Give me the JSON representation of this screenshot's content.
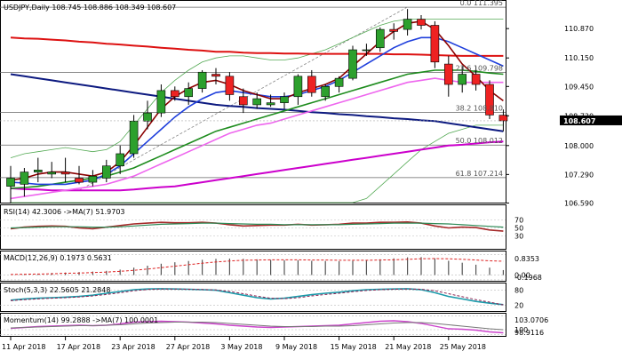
{
  "window": {
    "header": "USDJPY,Daily  108.745 108.886 108.349 108.607"
  },
  "colors": {
    "bull": "#2da02d",
    "bear": "#ee2222",
    "ma_darkred": "#8b0000",
    "ma_blue": "#1f3fdc",
    "ma_green": "#1e8c1e",
    "ma_red": "#dd1111",
    "ma_pink": "#ee66ee",
    "ma_magenta": "#cc00cc",
    "ma_navy": "#0d1a80",
    "bollinger": "#55aa55",
    "fib_line": "#666666",
    "price_label_bg": "#000000",
    "rsi_line": "#a52a2a",
    "rsi_ma": "#2e8b57",
    "macd_hist": "#555555",
    "macd_signal": "#dd2222",
    "stoch_main": "#1b9aaa",
    "stoch_signal": "#8b2252",
    "mom_main": "#cc44cc",
    "mom_ma": "#777777"
  },
  "chart_data": [
    {
      "type": "candlestick",
      "title": "USDJPY,Daily",
      "ohlc_text": "108.745 108.886 108.349 108.607",
      "current_price": "108.607",
      "ylim": [
        106.6,
        111.55
      ],
      "y_ticks": [
        "110.870",
        "110.150",
        "109.450",
        "108.730",
        "108.000",
        "107.290",
        "106.590"
      ],
      "x_ticks": [
        "11 Apr 2018",
        "17 Apr 2018",
        "23 Apr 2018",
        "27 Apr 2018",
        "3 May 2018",
        "9 May 2018",
        "15 May 2018",
        "21 May 2018",
        "25 May 2018"
      ],
      "x_tick_index": [
        0,
        4,
        8,
        12,
        16,
        20,
        24,
        28,
        32
      ],
      "fib_levels": [
        {
          "label": "0.0 111.395",
          "value": 111.395
        },
        {
          "label": "23.6 109.798",
          "value": 109.798
        },
        {
          "label": "38.2 108.810",
          "value": 108.81
        },
        {
          "label": "50.0 108.012",
          "value": 108.012
        },
        {
          "label": "61.8 107.214",
          "value": 107.214
        }
      ],
      "candles": [
        {
          "o": 107.0,
          "h": 107.5,
          "l": 106.6,
          "c": 107.2
        },
        {
          "o": 107.05,
          "h": 107.45,
          "l": 106.75,
          "c": 107.35
        },
        {
          "o": 107.35,
          "h": 107.7,
          "l": 107.1,
          "c": 107.4
        },
        {
          "o": 107.3,
          "h": 107.6,
          "l": 107.2,
          "c": 107.35
        },
        {
          "o": 107.35,
          "h": 107.7,
          "l": 107.1,
          "c": 107.3
        },
        {
          "o": 107.2,
          "h": 107.5,
          "l": 107.05,
          "c": 107.1
        },
        {
          "o": 107.1,
          "h": 107.4,
          "l": 107.0,
          "c": 107.25
        },
        {
          "o": 107.2,
          "h": 107.65,
          "l": 107.1,
          "c": 107.5
        },
        {
          "o": 107.5,
          "h": 108.0,
          "l": 107.3,
          "c": 107.8
        },
        {
          "o": 107.8,
          "h": 108.75,
          "l": 107.7,
          "c": 108.6
        },
        {
          "o": 108.6,
          "h": 109.1,
          "l": 108.4,
          "c": 108.8
        },
        {
          "o": 108.8,
          "h": 109.5,
          "l": 108.7,
          "c": 109.35
        },
        {
          "o": 109.35,
          "h": 109.45,
          "l": 109.1,
          "c": 109.2
        },
        {
          "o": 109.2,
          "h": 109.55,
          "l": 109.0,
          "c": 109.4
        },
        {
          "o": 109.4,
          "h": 109.85,
          "l": 109.3,
          "c": 109.8
        },
        {
          "o": 109.75,
          "h": 109.9,
          "l": 109.5,
          "c": 109.7
        },
        {
          "o": 109.7,
          "h": 109.8,
          "l": 109.1,
          "c": 109.25
        },
        {
          "o": 109.2,
          "h": 109.4,
          "l": 108.8,
          "c": 109.0
        },
        {
          "o": 109.0,
          "h": 109.3,
          "l": 108.9,
          "c": 109.15
        },
        {
          "o": 109.0,
          "h": 109.25,
          "l": 108.95,
          "c": 109.05
        },
        {
          "o": 109.05,
          "h": 109.3,
          "l": 108.9,
          "c": 109.2
        },
        {
          "o": 109.2,
          "h": 109.75,
          "l": 109.0,
          "c": 109.7
        },
        {
          "o": 109.7,
          "h": 109.85,
          "l": 109.2,
          "c": 109.3
        },
        {
          "o": 109.2,
          "h": 109.5,
          "l": 109.1,
          "c": 109.45
        },
        {
          "o": 109.45,
          "h": 109.7,
          "l": 109.3,
          "c": 109.65
        },
        {
          "o": 109.65,
          "h": 110.45,
          "l": 109.6,
          "c": 110.35
        },
        {
          "o": 110.35,
          "h": 110.5,
          "l": 110.2,
          "c": 110.35
        },
        {
          "o": 110.4,
          "h": 110.9,
          "l": 110.3,
          "c": 110.85
        },
        {
          "o": 110.85,
          "h": 111.0,
          "l": 110.6,
          "c": 110.8
        },
        {
          "o": 110.85,
          "h": 111.35,
          "l": 110.7,
          "c": 111.1
        },
        {
          "o": 111.1,
          "h": 111.2,
          "l": 110.85,
          "c": 110.95
        },
        {
          "o": 110.95,
          "h": 111.05,
          "l": 109.9,
          "c": 110.05
        },
        {
          "o": 110.0,
          "h": 110.2,
          "l": 109.2,
          "c": 109.5
        },
        {
          "o": 109.5,
          "h": 109.95,
          "l": 109.3,
          "c": 109.75
        },
        {
          "o": 109.75,
          "h": 109.95,
          "l": 109.35,
          "c": 109.5
        },
        {
          "o": 109.5,
          "h": 109.6,
          "l": 108.65,
          "c": 108.75
        },
        {
          "o": 108.745,
          "h": 108.886,
          "l": 108.349,
          "c": 108.607
        }
      ],
      "moving_averages": [
        {
          "color_key": "ma_navy",
          "values": [
            109.75,
            109.7,
            109.65,
            109.6,
            109.55,
            109.5,
            109.45,
            109.4,
            109.35,
            109.3,
            109.25,
            109.2,
            109.15,
            109.1,
            109.05,
            109.0,
            108.97,
            108.95,
            108.92,
            108.9,
            108.88,
            108.85,
            108.82,
            108.8,
            108.77,
            108.75,
            108.72,
            108.7,
            108.67,
            108.65,
            108.62,
            108.6,
            108.55,
            108.5,
            108.45,
            108.4,
            108.35
          ]
        },
        {
          "color_key": "ma_red",
          "values": [
            110.65,
            110.63,
            110.62,
            110.6,
            110.58,
            110.55,
            110.53,
            110.5,
            110.48,
            110.45,
            110.43,
            110.4,
            110.38,
            110.35,
            110.33,
            110.3,
            110.3,
            110.28,
            110.27,
            110.27,
            110.26,
            110.26,
            110.25,
            110.25,
            110.25,
            110.25,
            110.25,
            110.25,
            110.24,
            110.24,
            110.23,
            110.22,
            110.21,
            110.2,
            110.2,
            110.2,
            110.2
          ]
        },
        {
          "color_key": "ma_magenta",
          "values": [
            106.95,
            106.93,
            106.92,
            106.9,
            106.9,
            106.9,
            106.9,
            106.9,
            106.9,
            106.92,
            106.95,
            106.98,
            107.0,
            107.05,
            107.1,
            107.15,
            107.2,
            107.25,
            107.3,
            107.35,
            107.4,
            107.45,
            107.5,
            107.55,
            107.6,
            107.65,
            107.7,
            107.75,
            107.8,
            107.85,
            107.9,
            107.95,
            108.0,
            108.02,
            108.05,
            108.08,
            108.1
          ]
        },
        {
          "color_key": "ma_pink",
          "values": [
            106.7,
            106.75,
            106.8,
            106.85,
            106.9,
            106.95,
            107.0,
            107.05,
            107.15,
            107.25,
            107.4,
            107.55,
            107.7,
            107.85,
            108.0,
            108.15,
            108.3,
            108.4,
            108.5,
            108.55,
            108.65,
            108.75,
            108.85,
            108.95,
            109.05,
            109.15,
            109.25,
            109.35,
            109.45,
            109.55,
            109.6,
            109.65,
            109.6,
            109.55,
            109.55,
            109.55,
            109.55
          ]
        },
        {
          "color_key": "ma_green",
          "values": [
            106.95,
            106.97,
            107.0,
            107.05,
            107.1,
            107.15,
            107.2,
            107.25,
            107.35,
            107.45,
            107.6,
            107.75,
            107.9,
            108.05,
            108.2,
            108.35,
            108.45,
            108.55,
            108.65,
            108.75,
            108.85,
            108.95,
            109.05,
            109.15,
            109.25,
            109.35,
            109.45,
            109.55,
            109.65,
            109.75,
            109.8,
            109.85,
            109.85,
            109.85,
            109.82,
            109.78,
            109.75
          ]
        },
        {
          "color_key": "ma_blue",
          "values": [
            107.1,
            107.08,
            107.05,
            107.05,
            107.05,
            107.1,
            107.15,
            107.3,
            107.5,
            107.8,
            108.1,
            108.4,
            108.7,
            108.95,
            109.15,
            109.3,
            109.35,
            109.3,
            109.25,
            109.2,
            109.2,
            109.25,
            109.35,
            109.45,
            109.6,
            109.8,
            110.0,
            110.2,
            110.4,
            110.55,
            110.65,
            110.65,
            110.55,
            110.4,
            110.25,
            110.1,
            109.95
          ]
        },
        {
          "color_key": "ma_darkred",
          "values": [
            107.15,
            107.2,
            107.3,
            107.35,
            107.35,
            107.3,
            107.25,
            107.35,
            107.6,
            108.0,
            108.45,
            108.9,
            109.2,
            109.4,
            109.55,
            109.6,
            109.5,
            109.35,
            109.25,
            109.15,
            109.15,
            109.3,
            109.4,
            109.5,
            109.65,
            109.95,
            110.25,
            110.55,
            110.8,
            111.0,
            111.05,
            110.85,
            110.45,
            110.0,
            109.7,
            109.35,
            109.1
          ]
        }
      ],
      "bollinger": {
        "upper": [
          107.7,
          107.8,
          107.85,
          107.9,
          107.95,
          107.9,
          107.85,
          107.9,
          108.1,
          108.5,
          108.9,
          109.3,
          109.6,
          109.85,
          110.05,
          110.15,
          110.2,
          110.2,
          110.15,
          110.1,
          110.1,
          110.15,
          110.25,
          110.35,
          110.5,
          110.65,
          110.8,
          110.95,
          111.05,
          111.1,
          111.1,
          111.1,
          111.1,
          111.1,
          111.1,
          111.1,
          111.1
        ],
        "lower": [
          106.6,
          106.6,
          106.6,
          106.6,
          106.6,
          106.6,
          106.6,
          106.6,
          106.6,
          106.6,
          106.6,
          106.6,
          106.6,
          106.6,
          106.6,
          106.6,
          106.6,
          106.6,
          106.6,
          106.6,
          106.6,
          106.6,
          106.6,
          106.6,
          106.6,
          106.6,
          106.7,
          107.0,
          107.3,
          107.6,
          107.9,
          108.1,
          108.3,
          108.4,
          108.5,
          108.5,
          108.5
        ]
      }
    },
    {
      "type": "line",
      "title": "RSI(14) 42.3006  ->MA(7) 51.9703",
      "y_ticks": [
        "70",
        "50",
        "30"
      ],
      "ylim": [
        0,
        100
      ],
      "series": [
        {
          "color_key": "rsi_line",
          "values": [
            48,
            52,
            54,
            55,
            54,
            50,
            48,
            52,
            56,
            60,
            62,
            64,
            63,
            63,
            64,
            62,
            58,
            55,
            56,
            57,
            57,
            59,
            57,
            58,
            59,
            62,
            62,
            64,
            64,
            65,
            62,
            55,
            50,
            52,
            51,
            45,
            42
          ]
        },
        {
          "color_key": "rsi_ma",
          "values": [
            50,
            51,
            52,
            53,
            53,
            53,
            52,
            52,
            53,
            55,
            57,
            59,
            60,
            61,
            62,
            62,
            61,
            60,
            59,
            59,
            58,
            58,
            58,
            58,
            58,
            59,
            60,
            61,
            62,
            62,
            62,
            61,
            60,
            58,
            56,
            54,
            52
          ]
        }
      ]
    },
    {
      "type": "bar",
      "title": "MACD(12,26,9) 0.1973 0.5631",
      "y_ticks": [
        "0.8353",
        "0.00",
        "-0.1968"
      ],
      "ylim": [
        -0.2,
        0.85
      ],
      "series": [
        {
          "color_key": "macd_hist",
          "values": [
            0.0,
            0.02,
            0.05,
            0.08,
            0.1,
            0.12,
            0.14,
            0.17,
            0.22,
            0.3,
            0.38,
            0.46,
            0.52,
            0.57,
            0.62,
            0.66,
            0.67,
            0.66,
            0.64,
            0.62,
            0.6,
            0.6,
            0.58,
            0.57,
            0.56,
            0.58,
            0.6,
            0.64,
            0.68,
            0.72,
            0.73,
            0.68,
            0.58,
            0.5,
            0.42,
            0.3,
            0.2
          ]
        },
        {
          "color_key": "macd_signal",
          "values": [
            0.02,
            0.03,
            0.04,
            0.05,
            0.07,
            0.08,
            0.1,
            0.12,
            0.15,
            0.19,
            0.24,
            0.3,
            0.36,
            0.42,
            0.48,
            0.53,
            0.57,
            0.6,
            0.61,
            0.62,
            0.62,
            0.62,
            0.61,
            0.61,
            0.6,
            0.6,
            0.6,
            0.61,
            0.62,
            0.64,
            0.66,
            0.67,
            0.66,
            0.64,
            0.61,
            0.58,
            0.56
          ]
        }
      ]
    },
    {
      "type": "line",
      "title": "Stoch(5,3,3) 22.5605 21.2848",
      "y_ticks": [
        "80",
        "20"
      ],
      "ylim": [
        0,
        100
      ],
      "series": [
        {
          "color_key": "stoch_main",
          "values": [
            40,
            45,
            48,
            50,
            52,
            55,
            60,
            68,
            75,
            82,
            85,
            86,
            85,
            84,
            82,
            80,
            70,
            60,
            50,
            45,
            48,
            55,
            62,
            68,
            72,
            78,
            82,
            84,
            85,
            86,
            82,
            70,
            55,
            45,
            35,
            28,
            22
          ]
        },
        {
          "color_key": "stoch_signal",
          "values": [
            38,
            42,
            45,
            48,
            50,
            53,
            57,
            63,
            70,
            78,
            83,
            85,
            85,
            84,
            83,
            81,
            75,
            66,
            56,
            48,
            46,
            50,
            57,
            63,
            68,
            74,
            79,
            82,
            84,
            85,
            84,
            78,
            66,
            54,
            42,
            32,
            21
          ]
        }
      ]
    },
    {
      "type": "line",
      "title": "Momentum(14) 99.2888  ->MA(7) 100.0001",
      "y_ticks": [
        "103.0706",
        "100",
        "98.9116"
      ],
      "ylim": [
        98.8,
        103.2
      ],
      "series": [
        {
          "color_key": "mom_main",
          "values": [
            100.3,
            100.5,
            100.7,
            100.8,
            100.9,
            101.0,
            100.9,
            101.0,
            101.3,
            101.7,
            101.8,
            101.9,
            101.8,
            101.7,
            101.5,
            101.3,
            101.0,
            100.8,
            100.6,
            100.5,
            100.6,
            100.7,
            100.8,
            100.9,
            101.0,
            101.3,
            101.6,
            101.9,
            102.0,
            101.8,
            101.4,
            100.8,
            100.2,
            100.1,
            99.9,
            99.5,
            99.29
          ]
        },
        {
          "color_key": "mom_ma",
          "values": [
            100.4,
            100.5,
            100.6,
            100.7,
            100.8,
            100.9,
            100.9,
            101.0,
            101.1,
            101.3,
            101.5,
            101.6,
            101.7,
            101.7,
            101.7,
            101.6,
            101.4,
            101.2,
            101.0,
            100.8,
            100.7,
            100.7,
            100.7,
            100.8,
            100.8,
            100.9,
            101.1,
            101.3,
            101.5,
            101.6,
            101.6,
            101.4,
            101.1,
            100.8,
            100.5,
            100.2,
            100.0
          ]
        }
      ]
    }
  ]
}
